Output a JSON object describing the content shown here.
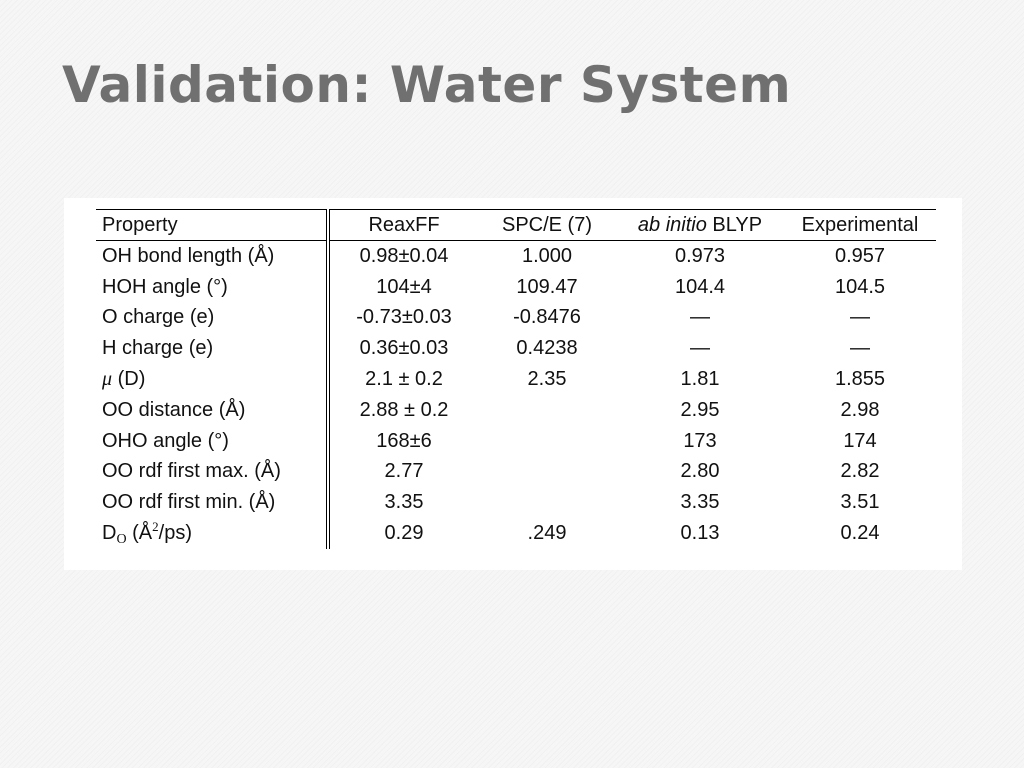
{
  "slide": {
    "title": "Validation: Water System"
  },
  "table": {
    "headers": {
      "property": "Property",
      "reaxff": "ReaxFF",
      "spce": "SPC/E (7)",
      "abinitio_italic": "ab initio",
      "abinitio_rest": " BLYP",
      "experimental": "Experimental"
    },
    "rows": [
      {
        "label": "OH bond length (Å)",
        "reaxff": "0.98±0.04",
        "spce": "1.000",
        "blyp": "0.973",
        "exp": "0.957"
      },
      {
        "label": "HOH angle (°)",
        "reaxff": "104±4",
        "spce": "109.47",
        "blyp": "104.4",
        "exp": "104.5"
      },
      {
        "label": "O charge (e)",
        "reaxff": "-0.73±0.03",
        "spce": "-0.8476",
        "blyp": "—",
        "exp": "—"
      },
      {
        "label": "H charge (e)",
        "reaxff": "0.36±0.03",
        "spce": "0.4238",
        "blyp": "—",
        "exp": "—"
      },
      {
        "label_symbol": "μ",
        "label_rest": " (D)",
        "reaxff": "2.1 ± 0.2",
        "spce": "2.35",
        "blyp": "1.81",
        "exp": "1.855"
      },
      {
        "label": "OO distance (Å)",
        "reaxff": "2.88 ± 0.2",
        "spce": "",
        "blyp": "2.95",
        "exp": "2.98"
      },
      {
        "label": "OHO angle (°)",
        "reaxff": "168±6",
        "spce": "",
        "blyp": "173",
        "exp": "174"
      },
      {
        "label": "OO rdf first max. (Å)",
        "reaxff": "2.77",
        "spce": "",
        "blyp": "2.80",
        "exp": "2.82"
      },
      {
        "label": "OO rdf first min. (Å)",
        "reaxff": "3.35",
        "spce": "",
        "blyp": "3.35",
        "exp": "3.51"
      },
      {
        "label_main": "D",
        "label_sub": "O",
        "label_mid": " (Å",
        "label_sup": "2",
        "label_end": "/ps)",
        "reaxff": "0.29",
        "spce": ".249",
        "blyp": "0.13",
        "exp": "0.24"
      }
    ]
  }
}
